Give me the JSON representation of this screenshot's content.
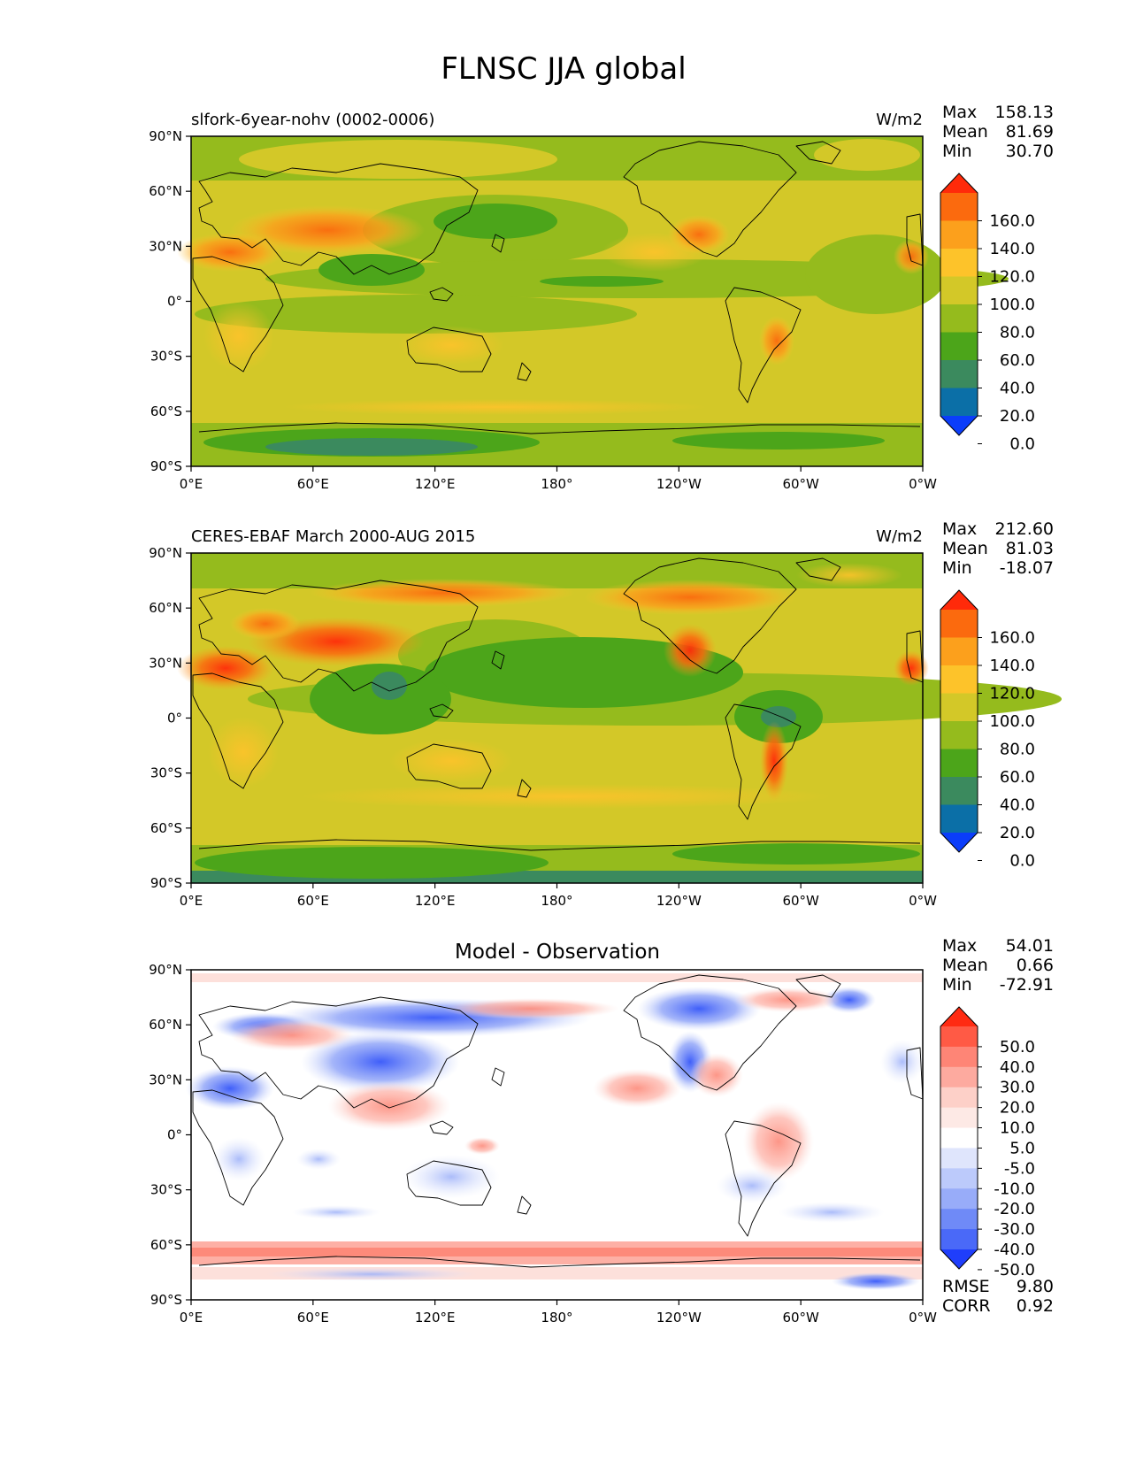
{
  "figure": {
    "title": "FLNSC JJA global"
  },
  "axes": {
    "x_ticks": [
      "0°E",
      "60°E",
      "120°E",
      "180°",
      "120°W",
      "60°W",
      "0°W"
    ],
    "y_ticks": [
      "90°N",
      "60°N",
      "30°N",
      "0°",
      "30°S",
      "60°S",
      "90°S"
    ]
  },
  "chart_data": [
    {
      "type": "heatmap",
      "left_title": "slfork-6year-nohv (0002-0006)",
      "center_title": "",
      "units": "W/m2",
      "stats": [
        {
          "label": "Max",
          "value": "158.13"
        },
        {
          "label": "Mean",
          "value": "81.69"
        },
        {
          "label": "Min",
          "value": "30.70"
        }
      ],
      "xlim": [
        0,
        360
      ],
      "ylim": [
        -90,
        90
      ],
      "colorbar": {
        "extend": "both",
        "labels": [
          "160.0",
          "140.0",
          "120.0",
          "100.0",
          "80.0",
          "60.0",
          "40.0",
          "20.0",
          "0.0"
        ],
        "colors": [
          "#ff2a0a",
          "#fb6a0e",
          "#fca01c",
          "#fdc32a",
          "#d3c828",
          "#95bb1d",
          "#4ca51a",
          "#3b8a5e",
          "#0b6fa7",
          "#0b3dfa"
        ]
      },
      "extra_stats": []
    },
    {
      "type": "heatmap",
      "left_title": "CERES-EBAF March 2000-AUG 2015",
      "center_title": "",
      "units": "W/m2",
      "stats": [
        {
          "label": "Max",
          "value": "212.60"
        },
        {
          "label": "Mean",
          "value": "81.03"
        },
        {
          "label": "Min",
          "value": "-18.07"
        }
      ],
      "xlim": [
        0,
        360
      ],
      "ylim": [
        -90,
        90
      ],
      "colorbar": {
        "extend": "both",
        "labels": [
          "160.0",
          "140.0",
          "120.0",
          "100.0",
          "80.0",
          "60.0",
          "40.0",
          "20.0",
          "0.0"
        ],
        "colors": [
          "#ff2a0a",
          "#fb6a0e",
          "#fca01c",
          "#fdc32a",
          "#d3c828",
          "#95bb1d",
          "#4ca51a",
          "#3b8a5e",
          "#0b6fa7",
          "#0b3dfa"
        ]
      },
      "extra_stats": []
    },
    {
      "type": "heatmap",
      "left_title": "",
      "center_title": "Model - Observation",
      "units": "",
      "stats": [
        {
          "label": "Max",
          "value": "54.01"
        },
        {
          "label": "Mean",
          "value": "0.66"
        },
        {
          "label": "Min",
          "value": "-72.91"
        }
      ],
      "xlim": [
        0,
        360
      ],
      "ylim": [
        -90,
        90
      ],
      "colorbar": {
        "extend": "both",
        "labels": [
          "50.0",
          "40.0",
          "30.0",
          "20.0",
          "10.0",
          "5.0",
          "-5.0",
          "-10.0",
          "-20.0",
          "-30.0",
          "-40.0",
          "-50.0"
        ],
        "colors": [
          "#ff2b12",
          "#ff5a45",
          "#fe8576",
          "#fdaa9f",
          "#fdd0c8",
          "#fde9e5",
          "#ffffff",
          "#dfe5fc",
          "#bccafb",
          "#98acf9",
          "#6f8af7",
          "#4a69f8",
          "#1f3efb"
        ]
      },
      "extra_stats": [
        {
          "label": "RMSE",
          "value": "9.80"
        },
        {
          "label": "CORR",
          "value": "0.92"
        }
      ]
    }
  ]
}
